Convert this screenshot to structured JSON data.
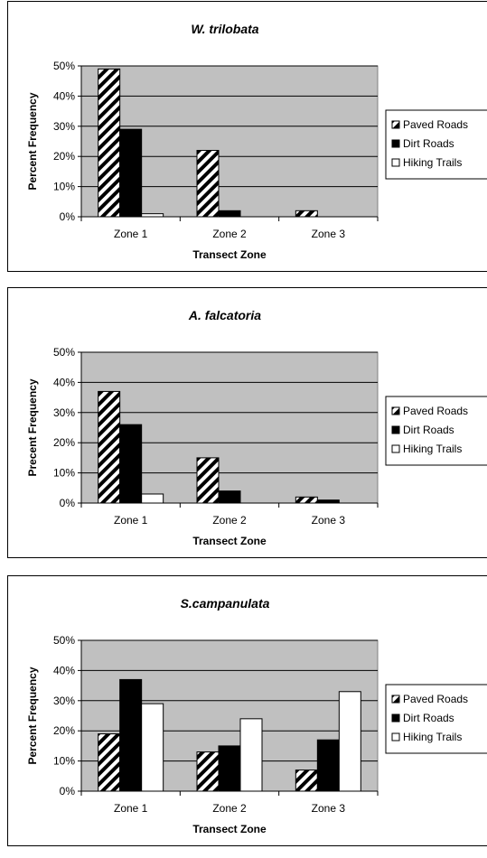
{
  "chart_data": [
    {
      "type": "bar",
      "title": "W. trilobata",
      "xlabel": "Transect Zone",
      "ylabel": "Percent Frequency",
      "ylim": [
        0,
        0.5
      ],
      "yticks": [
        "0%",
        "10%",
        "20%",
        "30%",
        "40%",
        "50%"
      ],
      "grid": true,
      "legend_position": "right",
      "categories": [
        "Zone 1",
        "Zone 2",
        "Zone 3"
      ],
      "series": [
        {
          "name": "Paved Roads",
          "values": [
            0.49,
            0.22,
            0.02
          ],
          "fill": "hatch"
        },
        {
          "name": "Dirt Roads",
          "values": [
            0.29,
            0.02,
            0.0
          ],
          "fill": "#000000"
        },
        {
          "name": "Hiking Trails",
          "values": [
            0.01,
            0.0,
            0.0
          ],
          "fill": "#ffffff"
        }
      ]
    },
    {
      "type": "bar",
      "title": "A. falcatoria",
      "xlabel": "Transect Zone",
      "ylabel": "Precent Frequency",
      "ylim": [
        0,
        0.5
      ],
      "yticks": [
        "0%",
        "10%",
        "20%",
        "30%",
        "40%",
        "50%"
      ],
      "grid": true,
      "legend_position": "right",
      "categories": [
        "Zone 1",
        "Zone 2",
        "Zone 3"
      ],
      "series": [
        {
          "name": "Paved Roads",
          "values": [
            0.37,
            0.15,
            0.02
          ],
          "fill": "hatch"
        },
        {
          "name": "Dirt Roads",
          "values": [
            0.26,
            0.04,
            0.01
          ],
          "fill": "#000000"
        },
        {
          "name": "Hiking Trails",
          "values": [
            0.03,
            0.0,
            0.0
          ],
          "fill": "#ffffff"
        }
      ]
    },
    {
      "type": "bar",
      "title": "S.campanulata",
      "xlabel": "Transect Zone",
      "ylabel": "Percent Frequency",
      "ylim": [
        0,
        0.5
      ],
      "yticks": [
        "0%",
        "10%",
        "20%",
        "30%",
        "40%",
        "50%"
      ],
      "grid": true,
      "legend_position": "right",
      "categories": [
        "Zone 1",
        "Zone 2",
        "Zone 3"
      ],
      "series": [
        {
          "name": "Paved Roads",
          "values": [
            0.19,
            0.13,
            0.07
          ],
          "fill": "hatch"
        },
        {
          "name": "Dirt Roads",
          "values": [
            0.37,
            0.15,
            0.17
          ],
          "fill": "#000000"
        },
        {
          "name": "Hiking Trails",
          "values": [
            0.29,
            0.24,
            0.33
          ],
          "fill": "#ffffff"
        }
      ]
    }
  ],
  "colors": {
    "plot_background": "#c0c0c0",
    "gridline": "#000000",
    "bar_outline": "#000000"
  }
}
